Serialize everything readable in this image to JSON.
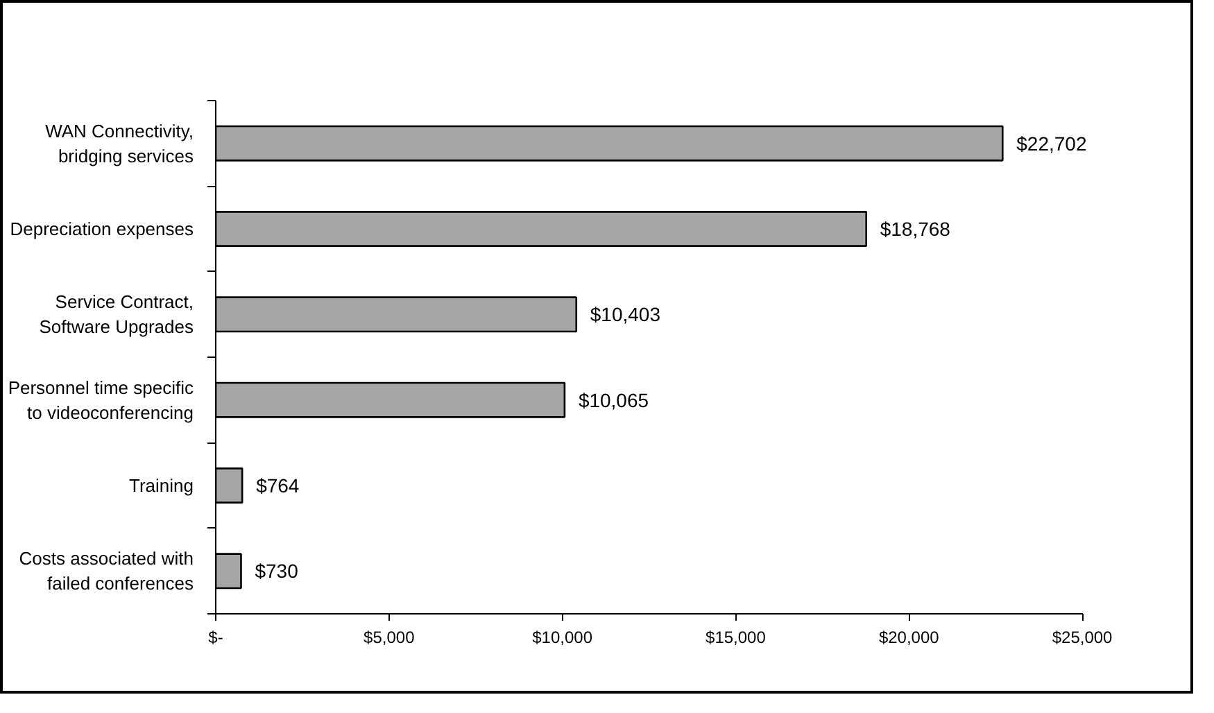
{
  "chart_data": {
    "type": "bar",
    "orientation": "horizontal",
    "categories": [
      "WAN Connectivity,\nbridging services",
      "Depreciation expenses",
      "Service Contract,\nSoftware Upgrades",
      "Personnel time specific\nto videoconferencing",
      "Training",
      "Costs associated with\nfailed conferences"
    ],
    "values": [
      22702,
      18768,
      10403,
      10065,
      764,
      730
    ],
    "value_labels": [
      "$22,702",
      "$18,768",
      "$10,403",
      "$10,065",
      "$764",
      "$730"
    ],
    "color": "#a6a6a6",
    "xlim": [
      0,
      25000
    ],
    "xticks": [
      {
        "value": 0,
        "label": "$-"
      },
      {
        "value": 5000,
        "label": "$5,000"
      },
      {
        "value": 10000,
        "label": "$10,000"
      },
      {
        "value": 15000,
        "label": "$15,000"
      },
      {
        "value": 20000,
        "label": "$20,000"
      },
      {
        "value": 25000,
        "label": "$25,000"
      }
    ],
    "grid": false
  }
}
